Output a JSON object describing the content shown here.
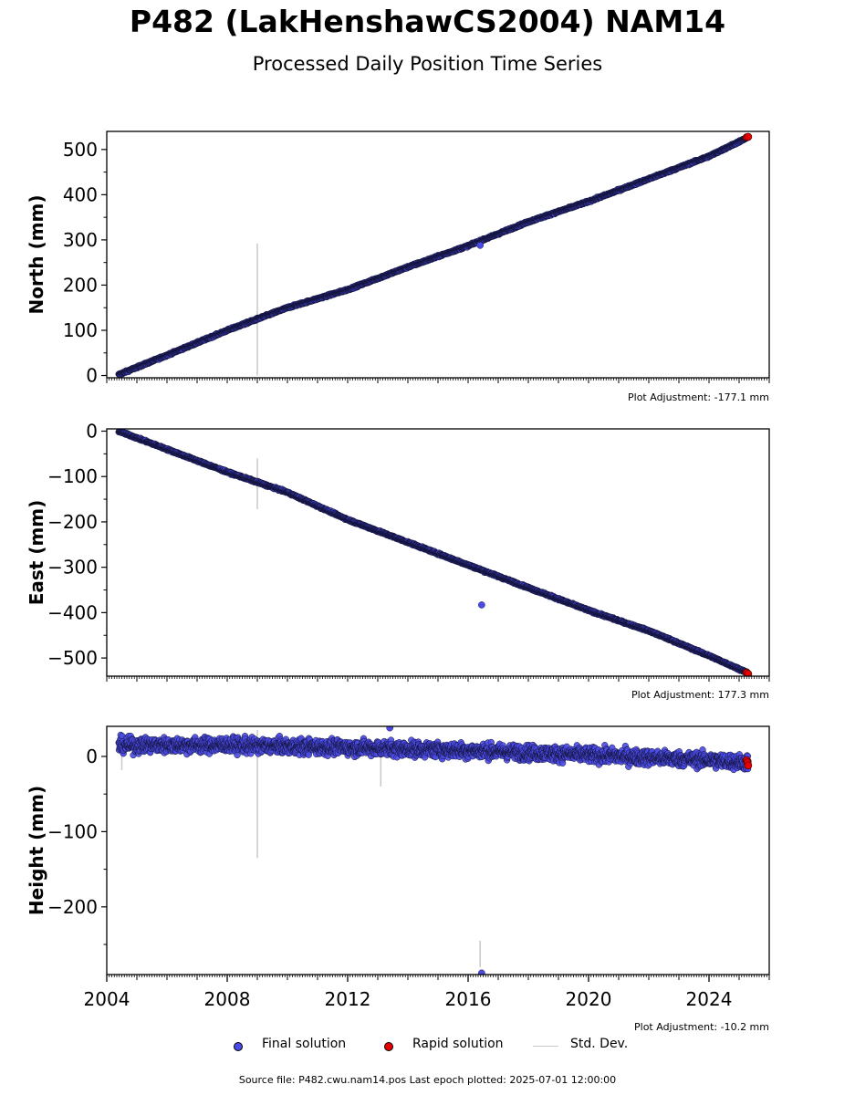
{
  "title": "P482 (LakHenshawCS2004) NAM14",
  "subtitle": "Processed Daily Position Time Series",
  "source_text": "Source file: P482.cwu.nam14.pos  Last epoch plotted: 2025-07-01 12:00:00",
  "legend": [
    {
      "label": "Final solution",
      "color": "#4a4ae6"
    },
    {
      "label": "Rapid solution",
      "color": "#e60000"
    },
    {
      "label": "Std. Dev.",
      "color": "#c8c8c8"
    }
  ],
  "colors": {
    "final": "#4a4ae6",
    "rapid": "#e60000",
    "stddev": "#c8c8c8"
  },
  "chart_data": [
    {
      "type": "scatter",
      "ylabel": "North (mm)",
      "adjustment": "Plot Adjustment: -177.1 mm",
      "xlim": [
        2004.0,
        2026.0
      ],
      "ylim": [
        -5,
        540
      ],
      "yticks": [
        0,
        100,
        200,
        300,
        400,
        500
      ],
      "yticklabels": [
        "0",
        "100",
        "200",
        "300",
        "400",
        "500"
      ],
      "trend_points": [
        [
          2004.4,
          2
        ],
        [
          2006.0,
          45
        ],
        [
          2008.0,
          100
        ],
        [
          2010.0,
          150
        ],
        [
          2012.0,
          190
        ],
        [
          2014.0,
          240
        ],
        [
          2016.0,
          287
        ],
        [
          2018.0,
          340
        ],
        [
          2020.0,
          385
        ],
        [
          2022.0,
          435
        ],
        [
          2024.0,
          485
        ],
        [
          2025.3,
          527
        ]
      ],
      "noise_mm": 2,
      "outliers": [
        [
          2016.4,
          288
        ]
      ],
      "stddev_bars": [
        [
          2009.0,
          0,
          292
        ]
      ],
      "rapid_points": [
        [
          2025.25,
          527
        ],
        [
          2025.3,
          528
        ]
      ]
    },
    {
      "type": "scatter",
      "ylabel": "East (mm)",
      "adjustment": "Plot Adjustment: 177.3 mm",
      "xlim": [
        2004.0,
        2026.0
      ],
      "ylim": [
        -540,
        5
      ],
      "yticks": [
        0,
        -100,
        -200,
        -300,
        -400,
        -500
      ],
      "yticklabels": [
        "0",
        "−100",
        "−200",
        "−300",
        "−400",
        "−500"
      ],
      "trend_points": [
        [
          2004.4,
          0
        ],
        [
          2006.0,
          -40
        ],
        [
          2008.0,
          -90
        ],
        [
          2010.0,
          -135
        ],
        [
          2012.0,
          -195
        ],
        [
          2014.0,
          -245
        ],
        [
          2016.0,
          -295
        ],
        [
          2018.0,
          -345
        ],
        [
          2020.0,
          -395
        ],
        [
          2022.0,
          -440
        ],
        [
          2024.0,
          -495
        ],
        [
          2025.3,
          -533
        ]
      ],
      "noise_mm": 2,
      "outliers": [
        [
          2016.45,
          -383
        ]
      ],
      "stddev_bars": [
        [
          2009.0,
          -172,
          -60
        ]
      ],
      "rapid_points": [
        [
          2025.25,
          -532
        ],
        [
          2025.3,
          -535
        ]
      ]
    },
    {
      "type": "scatter",
      "ylabel": "Height (mm)",
      "adjustment": "Plot Adjustment: -10.2 mm",
      "xlim": [
        2004.0,
        2026.0
      ],
      "ylim": [
        -290,
        40
      ],
      "yticks": [
        0,
        -100,
        -200
      ],
      "yticklabels": [
        "0",
        "−100",
        "−200"
      ],
      "xticks": [
        2004,
        2008,
        2012,
        2016,
        2020,
        2024
      ],
      "xticklabels": [
        "2004",
        "2008",
        "2012",
        "2016",
        "2020",
        "2024"
      ],
      "trend_points": [
        [
          2004.4,
          15
        ],
        [
          2008.0,
          15
        ],
        [
          2012.0,
          12
        ],
        [
          2016.0,
          8
        ],
        [
          2020.0,
          2
        ],
        [
          2024.0,
          -5
        ],
        [
          2025.3,
          -8
        ]
      ],
      "noise_mm": 10,
      "outliers": [
        [
          2016.45,
          -288
        ],
        [
          2013.4,
          38
        ]
      ],
      "stddev_bars": [
        [
          2009.0,
          -135,
          35
        ],
        [
          2013.1,
          -40,
          20
        ],
        [
          2016.4,
          -245,
          -280
        ],
        [
          2004.5,
          -18,
          30
        ]
      ],
      "rapid_points": [
        [
          2025.25,
          -5
        ],
        [
          2025.28,
          -8
        ],
        [
          2025.3,
          -12
        ]
      ]
    }
  ]
}
